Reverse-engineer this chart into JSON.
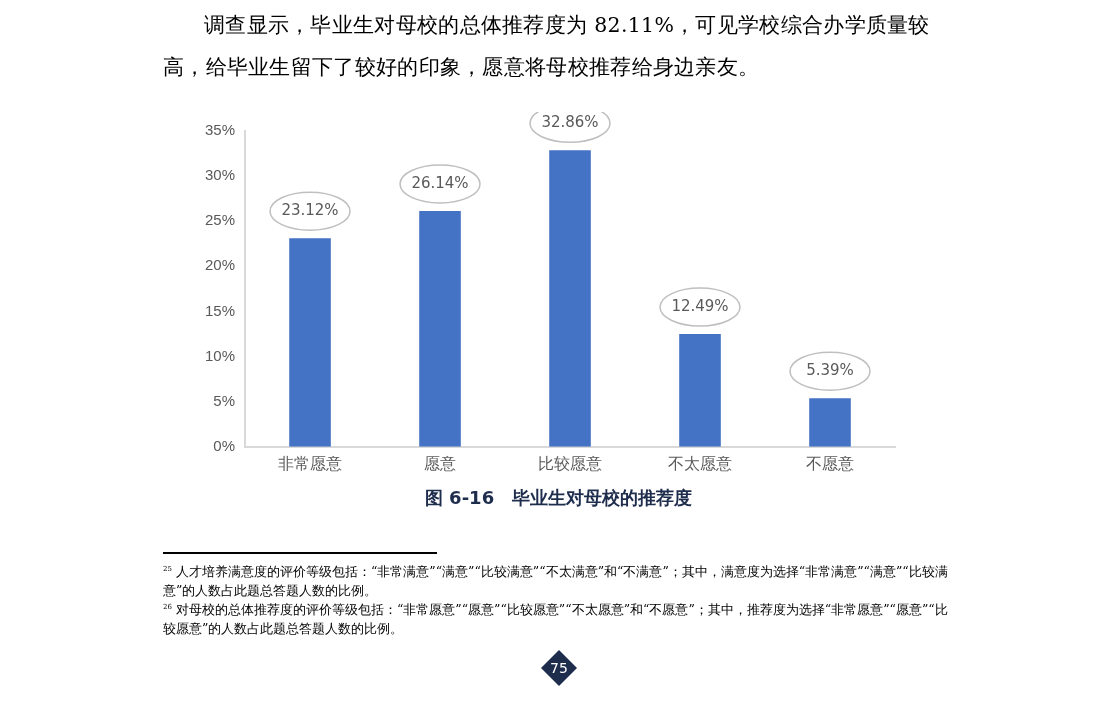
{
  "chart_data": {
    "type": "bar",
    "title": "图 6-16　毕业生对母校的推荐度",
    "categories": [
      "非常愿意",
      "愿意",
      "比较愿意",
      "不太愿意",
      "不愿意"
    ],
    "values": [
      23.12,
      26.14,
      32.86,
      12.49,
      5.39
    ],
    "value_labels": [
      "23.12%",
      "26.14%",
      "32.86%",
      "12.49%",
      "5.39%"
    ],
    "color": "#4472c4",
    "ylim": [
      0,
      35
    ],
    "yticks": [
      {
        "value": 0,
        "label": "0%"
      },
      {
        "value": 5,
        "label": "5%"
      },
      {
        "value": 10,
        "label": "10%"
      },
      {
        "value": 15,
        "label": "15%"
      },
      {
        "value": 20,
        "label": "20%"
      },
      {
        "value": 25,
        "label": "25%"
      },
      {
        "value": 30,
        "label": "30%"
      },
      {
        "value": 35,
        "label": "35%"
      }
    ],
    "grid": false,
    "legend": false,
    "annotations": [
      "调查显示，毕业生对母校的总体推荐度为 82.11%，可见学校综合办学质量较高，给毕业生留下了较好的印象，愿意将母校推荐给身边亲友。",
      "$^{25}$ 人才培养满意度的评价等级包括：“非常满意”“满意”“比较满意”“不太满意”和“不满意”；其中，满意度为选择“非常满意”“满意”“比较满意”的人数占此题总答题人数的比例。",
      "$^{26}$ 对母校的总体推荐度的评价等级包括：“非常愿意”“愿意”“比较愿意”“不太愿意”和“不愿意”；其中，推荐度为选择“非常愿意”“愿意”“比较愿意”的人数占此题总答题人数的比例。",
      "75"
    ]
  }
}
